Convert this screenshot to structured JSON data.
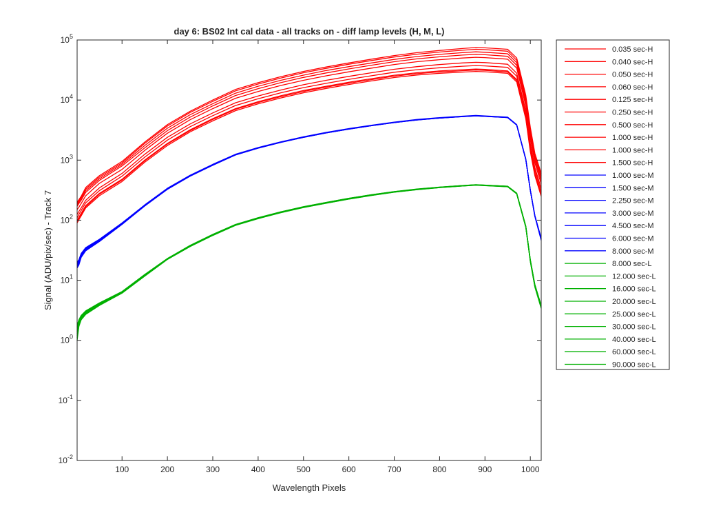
{
  "chart_data": {
    "type": "line",
    "title": "day 6: BS02   Int cal data - all tracks on - diff lamp levels (H, M, L)",
    "xlabel": "Wavelength Pixels",
    "ylabel": "Signal (ADU/pix/sec) - Track 7",
    "xlim": [
      1,
      1024
    ],
    "ylim": [
      0.01,
      100000
    ],
    "yscale": "log",
    "grid": false,
    "legend_position": "outside-right",
    "x_ticks": [
      {
        "value": 100,
        "label": "100"
      },
      {
        "value": 200,
        "label": "200"
      },
      {
        "value": 300,
        "label": "300"
      },
      {
        "value": 400,
        "label": "400"
      },
      {
        "value": 500,
        "label": "500"
      },
      {
        "value": 600,
        "label": "600"
      },
      {
        "value": 700,
        "label": "700"
      },
      {
        "value": 800,
        "label": "800"
      },
      {
        "value": 900,
        "label": "900"
      },
      {
        "value": 1000,
        "label": "1000"
      }
    ],
    "y_ticks": [
      {
        "value": 0.01,
        "base": "10",
        "exp": "-2"
      },
      {
        "value": 0.1,
        "base": "10",
        "exp": "-1"
      },
      {
        "value": 1,
        "base": "10",
        "exp": "0"
      },
      {
        "value": 10,
        "base": "10",
        "exp": "1"
      },
      {
        "value": 100,
        "base": "10",
        "exp": "2"
      },
      {
        "value": 1000,
        "base": "10",
        "exp": "3"
      },
      {
        "value": 10000,
        "base": "10",
        "exp": "4"
      },
      {
        "value": 100000,
        "base": "10",
        "exp": "5"
      }
    ],
    "colors": {
      "H": "#ff0000",
      "M": "#0000ff",
      "L": "#00b000"
    },
    "x": [
      1,
      5,
      10,
      20,
      50,
      100,
      150,
      200,
      250,
      300,
      350,
      400,
      450,
      500,
      550,
      600,
      650,
      700,
      750,
      800,
      850,
      880,
      900,
      950,
      970,
      990,
      1000,
      1010,
      1024
    ],
    "series": [
      {
        "name": "0.035 sec-H",
        "group": "H",
        "values": [
          200,
          220,
          250,
          350,
          550,
          950,
          2000,
          3900,
          6500,
          10000,
          15000,
          19500,
          24500,
          30000,
          35500,
          41500,
          48000,
          55000,
          61500,
          67000,
          72000,
          75000,
          74000,
          70000,
          50000,
          12000,
          3500,
          1300,
          600
        ]
      },
      {
        "name": "0.040 sec-H",
        "group": "H",
        "values": [
          190,
          210,
          240,
          330,
          520,
          900,
          1900,
          3700,
          6200,
          9500,
          14200,
          18500,
          23200,
          28500,
          33700,
          39500,
          45500,
          52000,
          58000,
          63000,
          67500,
          70000,
          69000,
          65000,
          46000,
          11000,
          3200,
          1200,
          550
        ]
      },
      {
        "name": "0.050 sec-H",
        "group": "H",
        "values": [
          180,
          200,
          230,
          310,
          490,
          850,
          1750,
          3400,
          5700,
          8700,
          13000,
          17000,
          21300,
          26000,
          31000,
          36000,
          41500,
          47500,
          53000,
          57500,
          61500,
          63500,
          62500,
          59000,
          42000,
          10000,
          2900,
          1100,
          500
        ]
      },
      {
        "name": "0.060 sec-H",
        "group": "H",
        "values": [
          170,
          190,
          215,
          290,
          460,
          800,
          1600,
          3100,
          5200,
          8000,
          11900,
          15500,
          19500,
          23800,
          28300,
          33000,
          38000,
          43500,
          48500,
          52500,
          56000,
          57500,
          56800,
          53500,
          38000,
          9000,
          2600,
          1000,
          450
        ]
      },
      {
        "name": "0.125 sec-H",
        "group": "H",
        "values": [
          150,
          165,
          190,
          255,
          410,
          700,
          1450,
          2800,
          4700,
          7200,
          10700,
          13900,
          17500,
          21300,
          25300,
          29500,
          34000,
          39000,
          43500,
          47000,
          50000,
          51500,
          50800,
          48000,
          34000,
          8000,
          2300,
          900,
          400
        ]
      },
      {
        "name": "0.250 sec-H",
        "group": "H",
        "values": [
          125,
          140,
          160,
          215,
          345,
          600,
          1250,
          2400,
          4000,
          6100,
          9000,
          11700,
          14700,
          18000,
          21300,
          24800,
          28500,
          32500,
          36000,
          39000,
          41500,
          42500,
          42000,
          39500,
          28000,
          6700,
          1900,
          750,
          340
        ]
      },
      {
        "name": "0.500 sec-H",
        "group": "H",
        "values": [
          110,
          125,
          145,
          195,
          310,
          540,
          1120,
          2150,
          3600,
          5500,
          8100,
          10500,
          13200,
          16100,
          19000,
          22100,
          25400,
          29000,
          32000,
          34500,
          36500,
          37500,
          37000,
          35000,
          25000,
          6000,
          1700,
          680,
          300
        ]
      },
      {
        "name": "1.000 sec-H",
        "group": "H",
        "values": [
          100,
          112,
          130,
          175,
          280,
          480,
          1000,
          1900,
          3200,
          4900,
          7200,
          9400,
          11800,
          14400,
          17000,
          19800,
          22700,
          25900,
          28500,
          30500,
          32000,
          32800,
          32400,
          30500,
          22000,
          5300,
          1500,
          600,
          270
        ]
      },
      {
        "name": "1.000 sec-H",
        "group": "H",
        "values": [
          95,
          108,
          125,
          168,
          270,
          465,
          970,
          1850,
          3100,
          4750,
          7000,
          9100,
          11400,
          13900,
          16400,
          19100,
          21900,
          25000,
          27500,
          29400,
          30800,
          31600,
          31200,
          29400,
          21200,
          5100,
          1450,
          580,
          260
        ]
      },
      {
        "name": "1.500 sec-H",
        "group": "H",
        "values": [
          90,
          102,
          118,
          160,
          255,
          440,
          920,
          1750,
          2950,
          4500,
          6650,
          8650,
          10850,
          13200,
          15600,
          18150,
          20800,
          23700,
          26100,
          27900,
          29200,
          30000,
          29600,
          27900,
          20000,
          4850,
          1380,
          550,
          250
        ]
      },
      {
        "name": "1.000 sec-M",
        "group": "M",
        "values": [
          20,
          22,
          28,
          35,
          48,
          90,
          180,
          340,
          560,
          850,
          1250,
          1620,
          2020,
          2450,
          2900,
          3350,
          3820,
          4300,
          4750,
          5100,
          5400,
          5550,
          5450,
          5200,
          3900,
          1050,
          320,
          120,
          50
        ]
      },
      {
        "name": "1.500 sec-M",
        "group": "M",
        "values": [
          19,
          21,
          27,
          34,
          47,
          88,
          176,
          333,
          550,
          835,
          1230,
          1595,
          1990,
          2410,
          2855,
          3300,
          3765,
          4240,
          4680,
          5030,
          5325,
          5470,
          5375,
          5130,
          3850,
          1030,
          315,
          118,
          49
        ]
      },
      {
        "name": "2.250 sec-M",
        "group": "M",
        "values": [
          19,
          21,
          27,
          34,
          47,
          88,
          177,
          335,
          552,
          838,
          1235,
          1600,
          1995,
          2420,
          2865,
          3310,
          3775,
          4250,
          4695,
          5045,
          5340,
          5485,
          5390,
          5145,
          3860,
          1035,
          316,
          118,
          49
        ]
      },
      {
        "name": "3.000 sec-M",
        "group": "M",
        "values": [
          18,
          20,
          26,
          33,
          46,
          87,
          175,
          331,
          547,
          830,
          1225,
          1590,
          1985,
          2405,
          2850,
          3295,
          3760,
          4235,
          4675,
          5025,
          5320,
          5465,
          5370,
          5125,
          3845,
          1028,
          314,
          117,
          48
        ]
      },
      {
        "name": "4.500 sec-M",
        "group": "M",
        "values": [
          18,
          20,
          26,
          33,
          46,
          87,
          174,
          330,
          545,
          828,
          1222,
          1586,
          1980,
          2400,
          2843,
          3288,
          3752,
          4226,
          4665,
          5015,
          5310,
          5455,
          5360,
          5115,
          3838,
          1026,
          313,
          117,
          48
        ]
      },
      {
        "name": "6.000 sec-M",
        "group": "M",
        "values": [
          17,
          19,
          25,
          32,
          45,
          86,
          173,
          328,
          542,
          824,
          1218,
          1582,
          1975,
          2395,
          2838,
          3282,
          3746,
          4220,
          4658,
          5008,
          5302,
          5447,
          5352,
          5107,
          3832,
          1024,
          312,
          116,
          47
        ]
      },
      {
        "name": "8.000 sec-M",
        "group": "M",
        "values": [
          16,
          18,
          24,
          31,
          44,
          85,
          172,
          326,
          540,
          820,
          1214,
          1578,
          1970,
          2390,
          2833,
          3277,
          3740,
          4214,
          4652,
          5002,
          5296,
          5441,
          5346,
          5101,
          3826,
          1022,
          311,
          115,
          46
        ]
      },
      {
        "name": "8.000 sec-L",
        "group": "L",
        "values": [
          1.8,
          2.2,
          2.6,
          3.1,
          4.2,
          6.5,
          12.5,
          23,
          38,
          58,
          85,
          110,
          138,
          168,
          198,
          232,
          266,
          300,
          330,
          356,
          378,
          390,
          384,
          368,
          282,
          80,
          22,
          8.5,
          3.8
        ]
      },
      {
        "name": "12.000 sec-L",
        "group": "L",
        "values": [
          1.7,
          2.1,
          2.55,
          3.05,
          4.15,
          6.45,
          12.4,
          22.9,
          37.8,
          57.7,
          84.6,
          109.5,
          137.4,
          167.3,
          197.2,
          231,
          265,
          299,
          329,
          355,
          377,
          389,
          383,
          367,
          281,
          79.5,
          21.8,
          8.4,
          3.75
        ]
      },
      {
        "name": "16.000 sec-L",
        "group": "L",
        "values": [
          1.6,
          2.0,
          2.5,
          3.0,
          4.1,
          6.4,
          12.3,
          22.8,
          37.6,
          57.4,
          84.2,
          109,
          136.8,
          166.6,
          196.4,
          230,
          264,
          298,
          328,
          354,
          376,
          388,
          382,
          366,
          280,
          79,
          21.6,
          8.3,
          3.7
        ]
      },
      {
        "name": "20.000 sec-L",
        "group": "L",
        "values": [
          1.5,
          1.95,
          2.45,
          2.95,
          4.05,
          6.35,
          12.2,
          22.7,
          37.4,
          57.1,
          83.8,
          108.5,
          136.2,
          165.9,
          195.6,
          229,
          263,
          297,
          327,
          353,
          375,
          387,
          381,
          365,
          279,
          78.5,
          21.4,
          8.2,
          3.65
        ]
      },
      {
        "name": "25.000 sec-L",
        "group": "L",
        "values": [
          1.4,
          1.9,
          2.4,
          2.9,
          4.0,
          6.3,
          12.1,
          22.6,
          37.2,
          56.8,
          83.4,
          108,
          135.6,
          165.2,
          194.8,
          228,
          262,
          296,
          326,
          352,
          374,
          386,
          380,
          364,
          278,
          78,
          21.2,
          8.1,
          3.6
        ]
      },
      {
        "name": "30.000 sec-L",
        "group": "L",
        "values": [
          1.3,
          1.85,
          2.35,
          2.85,
          3.95,
          6.25,
          12.0,
          22.5,
          37.0,
          56.5,
          83.0,
          107.5,
          135,
          164.5,
          194,
          227,
          261,
          295,
          325,
          351,
          373,
          385,
          379,
          363,
          277,
          77.5,
          21,
          8.0,
          3.55
        ]
      },
      {
        "name": "40.000 sec-L",
        "group": "L",
        "values": [
          1.2,
          1.8,
          2.3,
          2.8,
          3.9,
          6.2,
          11.9,
          22.4,
          36.8,
          56.2,
          82.6,
          107,
          134.4,
          163.8,
          193.2,
          226,
          260,
          294,
          324,
          350,
          372,
          384,
          378,
          362,
          276,
          77,
          20.8,
          7.9,
          3.5
        ]
      },
      {
        "name": "60.000 sec-L",
        "group": "L",
        "values": [
          1.1,
          1.75,
          2.25,
          2.75,
          3.85,
          6.15,
          11.8,
          22.3,
          36.6,
          55.9,
          82.2,
          106.5,
          133.8,
          163.1,
          192.4,
          225,
          259,
          293,
          323,
          349,
          371,
          383,
          377,
          361,
          275,
          76.5,
          20.6,
          7.8,
          3.45
        ]
      },
      {
        "name": "90.000 sec-L",
        "group": "L",
        "values": [
          1.0,
          1.7,
          2.2,
          2.7,
          3.8,
          6.1,
          11.7,
          22.2,
          36.4,
          55.6,
          81.8,
          106,
          133.2,
          162.4,
          191.6,
          224,
          258,
          292,
          322,
          348,
          370,
          382,
          376,
          360,
          274,
          76,
          20.4,
          7.7,
          3.4
        ]
      }
    ]
  }
}
